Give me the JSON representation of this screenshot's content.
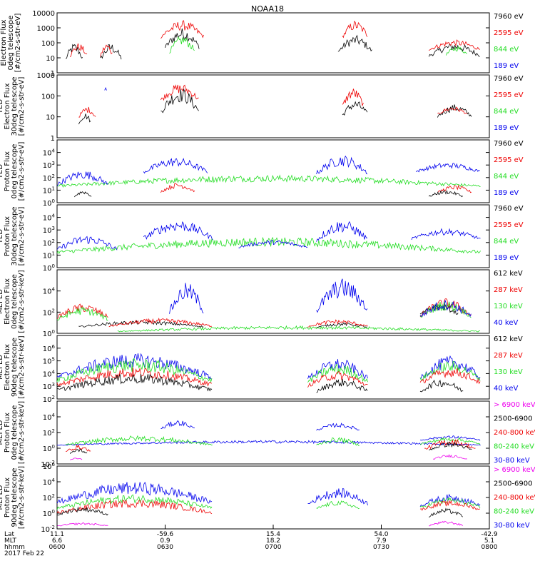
{
  "title": "NOAA18",
  "colors": {
    "black": "#000000",
    "red": "#ee0000",
    "green": "#22dd22",
    "blue": "#0000ee",
    "magenta": "#ee00ee"
  },
  "chart_data": [
    {
      "type": "line",
      "ylabel": [
        "Electron Flux",
        "0deg telescope",
        "[#/cm2-s-str-eV]"
      ],
      "ylog": true,
      "ylim": [
        1,
        10000
      ],
      "yticks": [
        "1",
        "10",
        "100",
        "1000",
        "10000"
      ],
      "tick_style": "plain",
      "legend": [
        {
          "label": "7960 eV",
          "color": "black"
        },
        {
          "label": "2595 eV",
          "color": "red"
        },
        {
          "label": "844 eV",
          "color": "green"
        },
        {
          "label": "189 eV",
          "color": "blue"
        }
      ],
      "series": [
        {
          "color": "black",
          "segments": [
            [
              0.02,
              0.06,
              0.5,
              2
            ],
            [
              0.1,
              0.15,
              0.5,
              2
            ],
            [
              0.25,
              0.33,
              1.2,
              3
            ],
            [
              0.65,
              0.73,
              1.0,
              2.5
            ],
            [
              0.86,
              0.98,
              0.8,
              2
            ]
          ]
        },
        {
          "color": "red",
          "segments": [
            [
              0.03,
              0.07,
              0.8,
              2
            ],
            [
              0.1,
              0.13,
              0.8,
              2
            ],
            [
              0.24,
              0.34,
              2.0,
              3.5
            ],
            [
              0.66,
              0.72,
              2.0,
              3.5
            ],
            [
              0.86,
              0.98,
              1.3,
              2.2
            ]
          ]
        },
        {
          "color": "green",
          "segments": [
            [
              0.26,
              0.32,
              1.0,
              2.5
            ],
            [
              0.9,
              0.95,
              1.0,
              1.8
            ]
          ]
        }
      ]
    },
    {
      "type": "line",
      "ylabel": [
        "TED",
        "Electron Flux",
        "30deg telescope",
        "[#/cm2-s-str-eV]"
      ],
      "ylog": true,
      "ylim": [
        1,
        1000
      ],
      "yticks": [
        "1",
        "10",
        "100",
        "1000"
      ],
      "tick_style": "plain",
      "legend": [
        {
          "label": "7960 eV",
          "color": "black"
        },
        {
          "label": "2595 eV",
          "color": "red"
        },
        {
          "label": "844 eV",
          "color": "green"
        },
        {
          "label": "189 eV",
          "color": "blue"
        }
      ],
      "series": [
        {
          "color": "black",
          "segments": [
            [
              0.05,
              0.08,
              0.5,
              1.2
            ],
            [
              0.24,
              0.33,
              0.8,
              2.4
            ],
            [
              0.66,
              0.72,
              0.8,
              1.8
            ],
            [
              0.88,
              0.96,
              0.8,
              1.6
            ]
          ]
        },
        {
          "color": "red",
          "segments": [
            [
              0.05,
              0.09,
              0.8,
              1.5
            ],
            [
              0.24,
              0.33,
              1.5,
              2.6
            ],
            [
              0.66,
              0.71,
              1.2,
              2.4
            ],
            [
              0.88,
              0.95,
              1.0,
              1.5
            ]
          ]
        },
        {
          "color": "blue",
          "segments": [
            [
              0.11,
              0.115,
              2.2,
              2.4
            ]
          ]
        }
      ]
    },
    {
      "type": "line",
      "ylabel": [
        "TED",
        "Proton Flux",
        "0deg telescope",
        "[#/cm2-s-str-eV]"
      ],
      "ylog": true,
      "ylim": [
        1,
        100000
      ],
      "yticks": [
        "10^0",
        "10^1",
        "10^2",
        "10^3",
        "10^4"
      ],
      "tick_style": "exp",
      "legend": [
        {
          "label": "7960 eV",
          "color": "black"
        },
        {
          "label": "2595 eV",
          "color": "red"
        },
        {
          "label": "844 eV",
          "color": "green"
        },
        {
          "label": "189 eV",
          "color": "blue"
        }
      ],
      "series": [
        {
          "color": "green",
          "segments": [
            [
              0.0,
              0.98,
              1.0,
              2.2
            ]
          ]
        },
        {
          "color": "blue",
          "segments": [
            [
              0.0,
              0.12,
              1.0,
              2.6
            ],
            [
              0.2,
              0.35,
              2.0,
              3.6
            ],
            [
              0.6,
              0.72,
              1.8,
              3.8
            ],
            [
              0.83,
              0.98,
              2.2,
              3.2
            ]
          ]
        },
        {
          "color": "red",
          "segments": [
            [
              0.24,
              0.32,
              0.6,
              1.6
            ],
            [
              0.88,
              0.96,
              0.6,
              1.4
            ]
          ]
        },
        {
          "color": "black",
          "segments": [
            [
              0.04,
              0.08,
              0.3,
              1.0
            ],
            [
              0.86,
              0.94,
              0.3,
              1.0
            ]
          ]
        }
      ]
    },
    {
      "type": "line",
      "ylabel": [
        "TED",
        "Proton Flux",
        "30deg telescope",
        "[#/cm2-s-str-eV]"
      ],
      "ylog": true,
      "ylim": [
        1,
        100000
      ],
      "yticks": [
        "10^0",
        "10^1",
        "10^2",
        "10^3",
        "10^4"
      ],
      "tick_style": "exp",
      "legend": [
        {
          "label": "7960 eV",
          "color": "black"
        },
        {
          "label": "2595 eV",
          "color": "red"
        },
        {
          "label": "844 eV",
          "color": "green"
        },
        {
          "label": "189 eV",
          "color": "blue"
        }
      ],
      "series": [
        {
          "color": "green",
          "segments": [
            [
              0.0,
              0.98,
              0.8,
              2.4
            ]
          ]
        },
        {
          "color": "blue",
          "segments": [
            [
              0.0,
              0.14,
              1.0,
              2.6
            ],
            [
              0.2,
              0.36,
              1.8,
              3.8
            ],
            [
              0.42,
              0.58,
              1.4,
              2.2
            ],
            [
              0.6,
              0.72,
              1.6,
              3.8
            ],
            [
              0.82,
              0.98,
              2.0,
              3.1
            ]
          ]
        }
      ]
    },
    {
      "type": "line",
      "ylabel": [
        "MEPED",
        "Electron Flux",
        "0deg telescope",
        "[#/cm2-s-str-keV]"
      ],
      "ylog": true,
      "ylim": [
        1,
        1000000
      ],
      "yticks": [
        "10^0",
        "10^2",
        "10^4"
      ],
      "tick_style": "exp",
      "legend": [
        {
          "label": "612 keV",
          "color": "black"
        },
        {
          "label": "287 keV",
          "color": "red"
        },
        {
          "label": "130 keV",
          "color": "green"
        },
        {
          "label": "40 keV",
          "color": "blue"
        }
      ],
      "series": [
        {
          "color": "black",
          "segments": [
            [
              0.05,
              0.34,
              0.4,
              1.2
            ],
            [
              0.6,
              0.72,
              0.4,
              1.0
            ],
            [
              0.84,
              0.93,
              1.4,
              2.8
            ]
          ]
        },
        {
          "color": "red",
          "segments": [
            [
              0.0,
              0.12,
              1.0,
              2.8
            ],
            [
              0.12,
              0.36,
              0.4,
              1.4
            ],
            [
              0.58,
              0.72,
              0.4,
              1.3
            ],
            [
              0.84,
              0.96,
              1.0,
              3.3
            ]
          ]
        },
        {
          "color": "green",
          "segments": [
            [
              0.0,
              0.12,
              0.8,
              2.5
            ],
            [
              0.14,
              0.98,
              0.0,
              0.7
            ],
            [
              0.84,
              0.96,
              1.0,
              3.1
            ]
          ]
        },
        {
          "color": "blue",
          "segments": [
            [
              0.26,
              0.34,
              1.0,
              4.8
            ],
            [
              0.6,
              0.72,
              1.0,
              5.2
            ],
            [
              0.84,
              0.96,
              1.0,
              3.2
            ]
          ]
        }
      ]
    },
    {
      "type": "line",
      "ylabel": [
        "MEPED",
        "Electron Flux",
        "90deg telescope",
        "[#/cm2-s-str-keV]"
      ],
      "ylog": true,
      "ylim": [
        100,
        10000000
      ],
      "yticks": [
        "10^2",
        "10^3",
        "10^4",
        "10^5",
        "10^6"
      ],
      "tick_style": "exp",
      "legend": [
        {
          "label": "612 keV",
          "color": "black"
        },
        {
          "label": "287 keV",
          "color": "red"
        },
        {
          "label": "130 keV",
          "color": "green"
        },
        {
          "label": "40 keV",
          "color": "blue"
        }
      ],
      "series": [
        {
          "color": "blue",
          "segments": [
            [
              0.0,
              0.36,
              3.0,
              5.6
            ],
            [
              0.58,
              0.72,
              3.0,
              5.2
            ],
            [
              0.84,
              0.98,
              3.0,
              5.4
            ]
          ]
        },
        {
          "color": "green",
          "segments": [
            [
              0.0,
              0.36,
              2.8,
              5.2
            ],
            [
              0.58,
              0.72,
              2.8,
              4.8
            ],
            [
              0.84,
              0.98,
              3.0,
              5.0
            ]
          ]
        },
        {
          "color": "red",
          "segments": [
            [
              0.0,
              0.36,
              2.6,
              4.5
            ],
            [
              0.58,
              0.72,
              2.6,
              4.2
            ],
            [
              0.84,
              0.98,
              2.8,
              4.5
            ]
          ]
        },
        {
          "color": "black",
          "segments": [
            [
              0.0,
              0.36,
              2.2,
              4.0
            ],
            [
              0.6,
              0.72,
              2.2,
              3.6
            ],
            [
              0.84,
              0.94,
              2.2,
              3.6
            ]
          ]
        }
      ]
    },
    {
      "type": "line",
      "ylabel": [
        "MEPED",
        "Proton Flux",
        "0deg telescope",
        "[#/cm2-s-str-keV]"
      ],
      "ylog": true,
      "ylim": [
        0.01,
        1000000
      ],
      "yticks": [
        "10^-2",
        "10^0",
        "10^2",
        "10^4"
      ],
      "tick_style": "exp",
      "legend": [
        {
          "label": "> 6900 keV",
          "color": "magenta"
        },
        {
          "label": "2500-6900",
          "color": "black"
        },
        {
          "label": "240-800 keV",
          "color": "red"
        },
        {
          "label": "80-240 keV",
          "color": "green"
        },
        {
          "label": "30-80 keV",
          "color": "blue"
        }
      ],
      "series": [
        {
          "color": "blue",
          "segments": [
            [
              0.0,
              0.98,
              0.2,
              1.0
            ],
            [
              0.24,
              0.32,
              2.0,
              3.6
            ],
            [
              0.6,
              0.7,
              2.0,
              3.2
            ],
            [
              0.84,
              0.98,
              0.8,
              1.6
            ]
          ]
        },
        {
          "color": "green",
          "segments": [
            [
              0.02,
              0.36,
              0.0,
              1.6
            ],
            [
              0.6,
              0.7,
              0.0,
              1.4
            ],
            [
              0.84,
              0.98,
              0.2,
              1.4
            ]
          ]
        },
        {
          "color": "red",
          "segments": [
            [
              0.02,
              0.08,
              -0.8,
              0.4
            ],
            [
              0.85,
              0.97,
              -0.6,
              1.2
            ]
          ]
        },
        {
          "color": "black",
          "segments": [
            [
              0.03,
              0.07,
              -1.0,
              0.0
            ],
            [
              0.86,
              0.96,
              -0.6,
              0.8
            ]
          ]
        },
        {
          "color": "magenta",
          "segments": [
            [
              0.03,
              0.06,
              -1.6,
              -1.2
            ],
            [
              0.87,
              0.95,
              -1.6,
              -0.8
            ]
          ]
        }
      ]
    },
    {
      "type": "line",
      "ylabel": [
        "MEPED",
        "Proton Flux",
        "90deg telescope",
        "[#/cm2-s-str-keV]"
      ],
      "ylog": true,
      "ylim": [
        0.01,
        1000000
      ],
      "yticks": [
        "10^-2",
        "10^0",
        "10^2",
        "10^4",
        "10^6"
      ],
      "tick_style": "exp",
      "legend": [
        {
          "label": "> 6900 keV",
          "color": "magenta"
        },
        {
          "label": "2500-6900",
          "color": "black"
        },
        {
          "label": "240-800 keV",
          "color": "red"
        },
        {
          "label": "80-240 keV",
          "color": "green"
        },
        {
          "label": "30-80 keV",
          "color": "blue"
        }
      ],
      "series": [
        {
          "color": "blue",
          "segments": [
            [
              0.0,
              0.36,
              0.4,
              4.0
            ],
            [
              0.58,
              0.72,
              0.4,
              3.2
            ],
            [
              0.84,
              0.98,
              0.4,
              2.4
            ]
          ]
        },
        {
          "color": "green",
          "segments": [
            [
              0.0,
              0.36,
              0.0,
              2.4
            ],
            [
              0.6,
              0.7,
              0.2,
              1.6
            ],
            [
              0.84,
              0.98,
              0.2,
              2.0
            ]
          ]
        },
        {
          "color": "red",
          "segments": [
            [
              0.0,
              0.36,
              -0.6,
              1.8
            ],
            [
              0.84,
              0.98,
              0.0,
              1.6
            ]
          ]
        },
        {
          "color": "black",
          "segments": [
            [
              0.0,
              0.12,
              -0.6,
              0.8
            ],
            [
              0.86,
              0.94,
              -0.8,
              0.6
            ]
          ]
        },
        {
          "color": "magenta",
          "segments": [
            [
              0.0,
              0.12,
              -1.8,
              -1.2
            ],
            [
              0.86,
              0.94,
              -1.8,
              -1.0
            ]
          ]
        }
      ]
    }
  ],
  "xaxis": {
    "row_labels": [
      "Lat",
      "MLT",
      "hhmm",
      "2017 Feb 22"
    ],
    "ticks": [
      {
        "lat": "11.1",
        "mlt": "6.6",
        "hhmm": "0600"
      },
      {
        "lat": "-59.6",
        "mlt": "0.9",
        "hhmm": "0630"
      },
      {
        "lat": "15.4",
        "mlt": "18.2",
        "hhmm": "0700"
      },
      {
        "lat": "54.0",
        "mlt": "7.9",
        "hhmm": "0730"
      },
      {
        "lat": "-42.9",
        "mlt": "5.1",
        "hhmm": "0800"
      }
    ]
  }
}
